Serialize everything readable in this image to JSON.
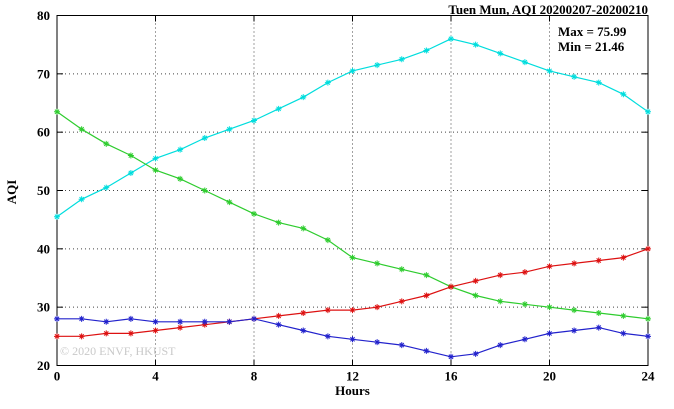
{
  "header": {
    "title": "Tuen Mun, AQI 20200207-20200210"
  },
  "annotation": {
    "max_label": "Max = 75.99",
    "min_label": "Min = 21.46"
  },
  "watermark": "© 2020 ENVF, HKUST",
  "axes": {
    "x_label": "Hours",
    "y_label": "AQI"
  },
  "chart_data": {
    "type": "line",
    "title": "Tuen Mun, AQI 20200207-20200210",
    "xlabel": "Hours",
    "ylabel": "AQI",
    "xlim": [
      0,
      24
    ],
    "ylim": [
      20,
      80
    ],
    "xticks": [
      0,
      4,
      8,
      12,
      16,
      20,
      24
    ],
    "yticks": [
      20,
      30,
      40,
      50,
      60,
      70,
      80
    ],
    "grid": true,
    "legend_position": "none",
    "annotations": [
      "Max = 75.99",
      "Min = 21.46"
    ],
    "marker": "asterisk",
    "x": [
      0,
      1,
      2,
      3,
      4,
      5,
      6,
      7,
      8,
      9,
      10,
      11,
      12,
      13,
      14,
      15,
      16,
      17,
      18,
      19,
      20,
      21,
      22,
      23,
      24
    ],
    "series": [
      {
        "name": "cyan",
        "color": "#00dddd",
        "values": [
          45.5,
          48.5,
          50.5,
          53,
          55.5,
          57,
          59,
          60.5,
          62,
          64,
          66,
          68.5,
          70.5,
          71.5,
          72.5,
          74,
          76,
          75,
          73.5,
          72,
          70.5,
          69.5,
          68.5,
          66.5,
          63.5
        ]
      },
      {
        "name": "green",
        "color": "#2ecc2e",
        "values": [
          63.5,
          60.5,
          58,
          56,
          53.5,
          52,
          50,
          48,
          46,
          44.5,
          43.5,
          41.5,
          38.5,
          37.5,
          36.5,
          35.5,
          33.5,
          32,
          31,
          30.5,
          30,
          29.5,
          29,
          28.5,
          28
        ]
      },
      {
        "name": "red",
        "color": "#dd1111",
        "values": [
          25,
          25,
          25.5,
          25.5,
          26,
          26.5,
          27,
          27.5,
          28,
          28.5,
          29,
          29.5,
          29.5,
          30,
          31,
          32,
          33.5,
          34.5,
          35.5,
          36,
          37,
          37.5,
          38,
          38.5,
          40
        ]
      },
      {
        "name": "blue",
        "color": "#2222cc",
        "values": [
          28,
          28,
          27.5,
          28,
          27.5,
          27.5,
          27.5,
          27.5,
          28,
          27,
          26,
          25,
          24.5,
          24,
          23.5,
          22.5,
          21.5,
          22,
          23.5,
          24.5,
          25.5,
          26,
          26.5,
          25.5,
          25
        ]
      }
    ]
  }
}
